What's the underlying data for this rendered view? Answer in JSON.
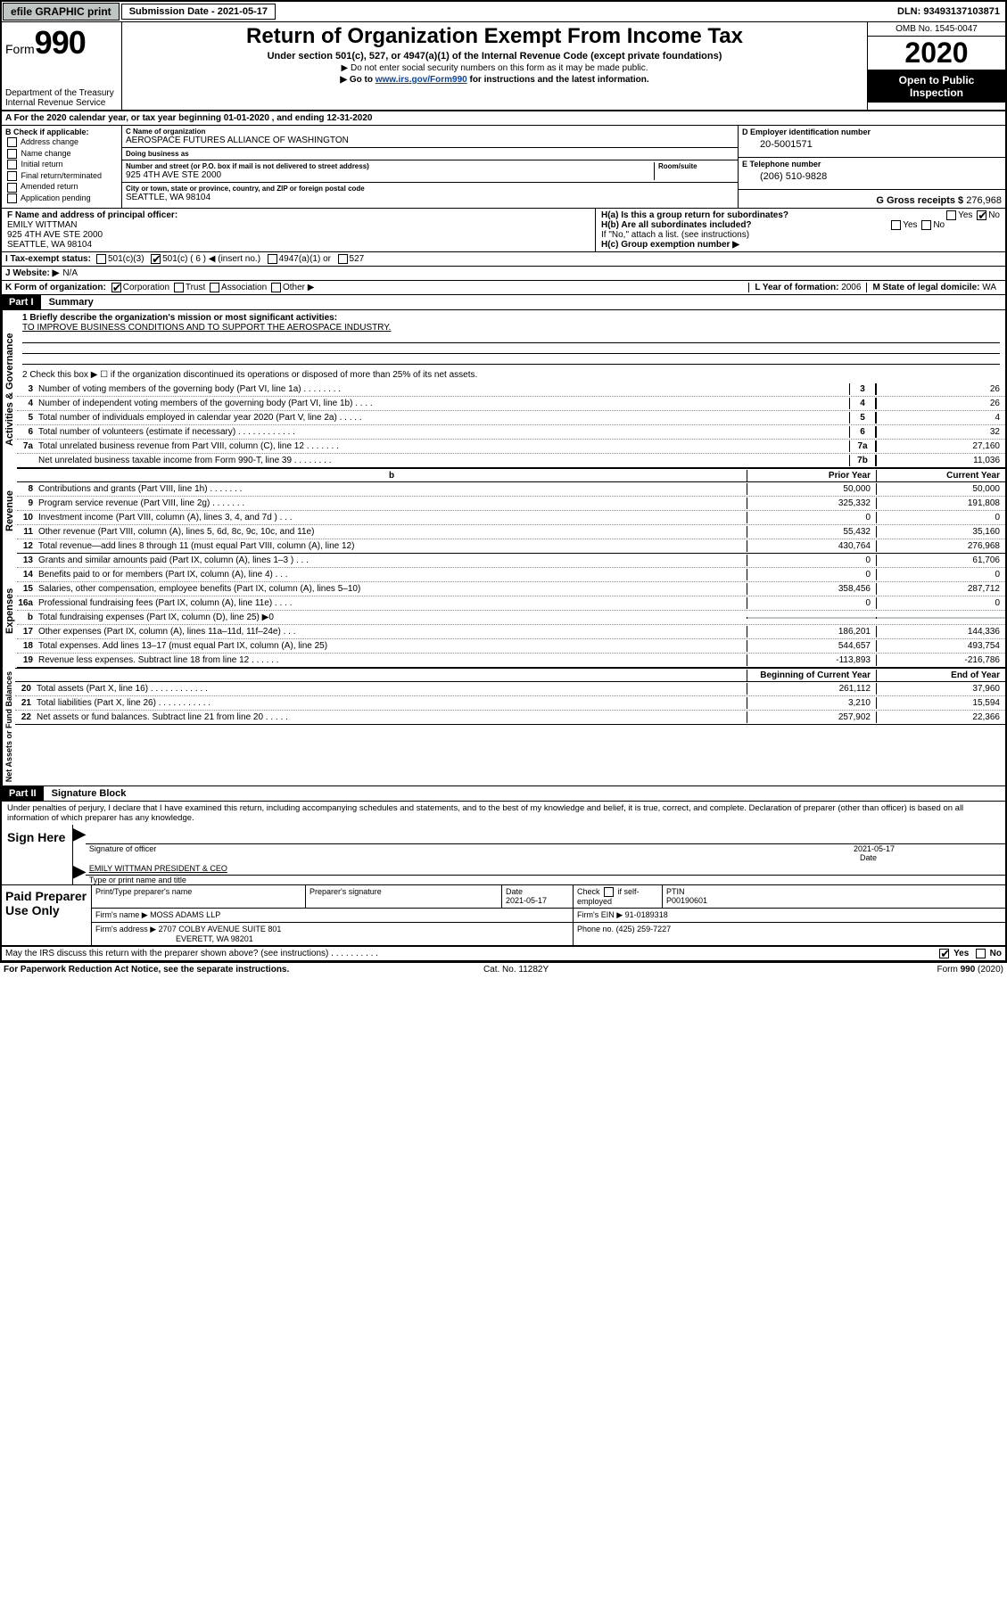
{
  "topbar": {
    "efile": "efile GRAPHIC print",
    "submission_label": "Submission Date - 2021-05-17",
    "dln": "DLN: 93493137103871"
  },
  "header": {
    "form_word": "Form",
    "form_num": "990",
    "dept": "Department of the Treasury\nInternal Revenue Service",
    "title": "Return of Organization Exempt From Income Tax",
    "sub1": "Under section 501(c), 527, or 4947(a)(1) of the Internal Revenue Code (except private foundations)",
    "sub2": "▶ Do not enter social security numbers on this form as it may be made public.",
    "sub3_pre": "▶ Go to ",
    "sub3_link": "www.irs.gov/Form990",
    "sub3_post": " for instructions and the latest information.",
    "omb": "OMB No. 1545-0047",
    "year": "2020",
    "open": "Open to Public Inspection"
  },
  "lineA": "A For the 2020 calendar year, or tax year beginning 01-01-2020   , and ending 12-31-2020",
  "colB": {
    "hdr": "B Check if applicable:",
    "opts": [
      "Address change",
      "Name change",
      "Initial return",
      "Final return/terminated",
      "Amended return",
      "Application pending"
    ]
  },
  "colC": {
    "name_lbl": "C Name of organization",
    "name": "AEROSPACE FUTURES ALLIANCE OF WASHINGTON",
    "dba_lbl": "Doing business as",
    "dba": "",
    "addr_lbl": "Number and street (or P.O. box if mail is not delivered to street address)",
    "addr": "925 4TH AVE STE 2000",
    "room_lbl": "Room/suite",
    "city_lbl": "City or town, state or province, country, and ZIP or foreign postal code",
    "city": "SEATTLE, WA  98104"
  },
  "colD": {
    "ein_lbl": "D Employer identification number",
    "ein": "20-5001571",
    "tel_lbl": "E Telephone number",
    "tel": "(206) 510-9828",
    "gross_lbl": "G Gross receipts $ ",
    "gross": "276,968"
  },
  "rowF": {
    "lbl": "F Name and address of principal officer:",
    "name": "EMILY WITTMAN",
    "addr1": "925 4TH AVE STE 2000",
    "addr2": "SEATTLE, WA  98104"
  },
  "rowH": {
    "ha": "H(a)  Is this a group return for subordinates?",
    "hb": "H(b)  Are all subordinates included?",
    "hb_note": "If \"No,\" attach a list. (see instructions)",
    "hc": "H(c)  Group exemption number ▶"
  },
  "rowI": {
    "lbl": "I  Tax-exempt status:",
    "o1": "501(c)(3)",
    "o2": "501(c) ( 6 ) ◀ (insert no.)",
    "o3": "4947(a)(1) or",
    "o4": "527"
  },
  "rowJ": {
    "lbl": "J  Website: ▶",
    "val": "N/A"
  },
  "rowK": {
    "lbl": "K Form of organization:",
    "corp": "Corporation",
    "trust": "Trust",
    "assoc": "Association",
    "other": "Other ▶",
    "l_lbl": "L Year of formation:",
    "l_val": "2006",
    "m_lbl": "M State of legal domicile:",
    "m_val": "WA"
  },
  "partI": {
    "hdr": "Part I",
    "title": "Summary",
    "q1_lbl": "1  Briefly describe the organization's mission or most significant activities:",
    "q1_val": "TO IMPROVE BUSINESS CONDITIONS AND TO SUPPORT THE AEROSPACE INDUSTRY.",
    "q2": "2   Check this box ▶ ☐  if the organization discontinued its operations or disposed of more than 25% of its net assets.",
    "vlabels": {
      "ag": "Activities & Governance",
      "rev": "Revenue",
      "exp": "Expenses",
      "nab": "Net Assets or Fund Balances"
    },
    "th_prior": "Prior Year",
    "th_current": "Current Year",
    "th_begin": "Beginning of Current Year",
    "th_end": "End of Year",
    "lines_single": [
      {
        "n": "3",
        "d": "Number of voting members of the governing body (Part VI, line 1a)  .  .  .  .  .  .  .  .",
        "b": "3",
        "v": "26"
      },
      {
        "n": "4",
        "d": "Number of independent voting members of the governing body (Part VI, line 1b)  .  .  .  .",
        "b": "4",
        "v": "26"
      },
      {
        "n": "5",
        "d": "Total number of individuals employed in calendar year 2020 (Part V, line 2a)  .  .  .  .  .",
        "b": "5",
        "v": "4"
      },
      {
        "n": "6",
        "d": "Total number of volunteers (estimate if necessary)  .  .  .  .  .  .  .  .  .  .  .  .",
        "b": "6",
        "v": "32"
      },
      {
        "n": "7a",
        "d": "Total unrelated business revenue from Part VIII, column (C), line 12  .  .  .  .  .  .  .",
        "b": "7a",
        "v": "27,160"
      },
      {
        "n": "",
        "d": "Net unrelated business taxable income from Form 990-T, line 39  .  .  .  .  .  .  .  .",
        "b": "7b",
        "v": "11,036"
      }
    ],
    "lines_rev": [
      {
        "n": "8",
        "d": "Contributions and grants (Part VIII, line 1h)  .  .  .  .  .  .  .",
        "p": "50,000",
        "c": "50,000"
      },
      {
        "n": "9",
        "d": "Program service revenue (Part VIII, line 2g)  .  .  .  .  .  .  .",
        "p": "325,332",
        "c": "191,808"
      },
      {
        "n": "10",
        "d": "Investment income (Part VIII, column (A), lines 3, 4, and 7d )  .  .  .",
        "p": "0",
        "c": "0"
      },
      {
        "n": "11",
        "d": "Other revenue (Part VIII, column (A), lines 5, 6d, 8c, 9c, 10c, and 11e)",
        "p": "55,432",
        "c": "35,160"
      },
      {
        "n": "12",
        "d": "Total revenue—add lines 8 through 11 (must equal Part VIII, column (A), line 12)",
        "p": "430,764",
        "c": "276,968"
      }
    ],
    "lines_exp": [
      {
        "n": "13",
        "d": "Grants and similar amounts paid (Part IX, column (A), lines 1–3 )  .  .  .",
        "p": "0",
        "c": "61,706"
      },
      {
        "n": "14",
        "d": "Benefits paid to or for members (Part IX, column (A), line 4)  .  .  .",
        "p": "0",
        "c": "0"
      },
      {
        "n": "15",
        "d": "Salaries, other compensation, employee benefits (Part IX, column (A), lines 5–10)",
        "p": "358,456",
        "c": "287,712"
      },
      {
        "n": "16a",
        "d": "Professional fundraising fees (Part IX, column (A), line 11e)  .  .  .  .",
        "p": "0",
        "c": "0"
      },
      {
        "n": "b",
        "d": "Total fundraising expenses (Part IX, column (D), line 25) ▶0",
        "p": "",
        "c": "",
        "gray": true
      },
      {
        "n": "17",
        "d": "Other expenses (Part IX, column (A), lines 11a–11d, 11f–24e)  .  .  .",
        "p": "186,201",
        "c": "144,336"
      },
      {
        "n": "18",
        "d": "Total expenses. Add lines 13–17 (must equal Part IX, column (A), line 25)",
        "p": "544,657",
        "c": "493,754"
      },
      {
        "n": "19",
        "d": "Revenue less expenses. Subtract line 18 from line 12  .  .  .  .  .  .",
        "p": "-113,893",
        "c": "-216,786"
      }
    ],
    "lines_nab": [
      {
        "n": "20",
        "d": "Total assets (Part X, line 16)  .  .  .  .  .  .  .  .  .  .  .  .",
        "p": "261,112",
        "c": "37,960"
      },
      {
        "n": "21",
        "d": "Total liabilities (Part X, line 26)  .  .  .  .  .  .  .  .  .  .  .",
        "p": "3,210",
        "c": "15,594"
      },
      {
        "n": "22",
        "d": "Net assets or fund balances. Subtract line 21 from line 20  .  .  .  .  .",
        "p": "257,902",
        "c": "22,366"
      }
    ]
  },
  "partII": {
    "hdr": "Part II",
    "title": "Signature Block",
    "decl": "Under penalties of perjury, I declare that I have examined this return, including accompanying schedules and statements, and to the best of my knowledge and belief, it is true, correct, and complete. Declaration of preparer (other than officer) is based on all information of which preparer has any knowledge."
  },
  "sign": {
    "here": "Sign Here",
    "sig_lbl": "Signature of officer",
    "date_lbl": "Date",
    "date": "2021-05-17",
    "name": "EMILY WITTMAN  PRESIDENT & CEO",
    "name_lbl": "Type or print name and title"
  },
  "prep": {
    "title": "Paid Preparer Use Only",
    "h1": "Print/Type preparer's name",
    "h2": "Preparer's signature",
    "h3": "Date",
    "h3v": "2021-05-17",
    "h4a": "Check",
    "h4b": "if self-employed",
    "h5": "PTIN",
    "h5v": "P00190601",
    "firm_lbl": "Firm's name    ▶",
    "firm": "MOSS ADAMS LLP",
    "ein_lbl": "Firm's EIN ▶",
    "ein": "91-0189318",
    "addr_lbl": "Firm's address ▶",
    "addr1": "2707 COLBY AVENUE SUITE 801",
    "addr2": "EVERETT, WA  98201",
    "phone_lbl": "Phone no.",
    "phone": "(425) 259-7227",
    "discuss": "May the IRS discuss this return with the preparer shown above? (see instructions)  .  .  .  .  .  .  .  .  .  .",
    "yes": "Yes",
    "no": "No"
  },
  "footer": {
    "l": "For Paperwork Reduction Act Notice, see the separate instructions.",
    "c": "Cat. No. 11282Y",
    "r": "Form 990 (2020)"
  }
}
